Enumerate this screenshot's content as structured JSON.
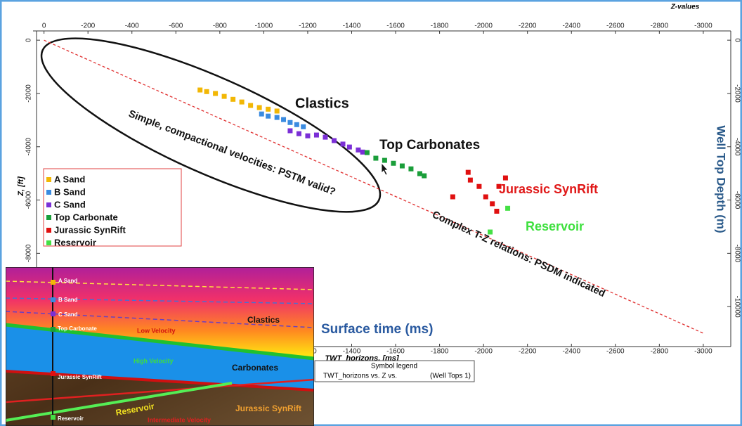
{
  "chart_data": {
    "type": "scatter",
    "x_label_top": "Z-values",
    "x_label": "TWT_horizons, [ms]",
    "y_label": "Z, [ft]",
    "y2_label": "Well Top Depth (m)",
    "xlim": [
      50,
      -3125
    ],
    "xticks": [
      0,
      -200,
      -400,
      -600,
      -800,
      -1000,
      -1200,
      -1400,
      -1600,
      -1800,
      -2000,
      -2200,
      -2400,
      -2600,
      -2800,
      -3000
    ],
    "ylim": [
      400,
      -11500
    ],
    "yticks": [
      0,
      -2000,
      -4000,
      -6000,
      -8000
    ],
    "y2lim": [
      400,
      -11500
    ],
    "y2ticks": [
      0,
      -2000,
      -4000,
      -6000,
      -8000,
      -10000
    ],
    "series": [
      {
        "name": "A Sand",
        "color": "#f2b705",
        "x": [
          -710,
          -740,
          -780,
          -820,
          -860,
          -900,
          -940,
          -980,
          -1020,
          -1060
        ],
        "y": [
          -1870,
          -1930,
          -2000,
          -2110,
          -2220,
          -2320,
          -2450,
          -2530,
          -2590,
          -2660
        ]
      },
      {
        "name": "B Sand",
        "color": "#3a8be0",
        "x": [
          -990,
          -1020,
          -1060,
          -1090,
          -1120,
          -1150,
          -1180
        ],
        "y": [
          -2770,
          -2850,
          -2900,
          -2980,
          -3090,
          -3170,
          -3250
        ]
      },
      {
        "name": "C Sand",
        "color": "#7b2fd6",
        "x": [
          -1120,
          -1160,
          -1200,
          -1240,
          -1280,
          -1320,
          -1360,
          -1390,
          -1430,
          -1450
        ],
        "y": [
          -3400,
          -3510,
          -3590,
          -3560,
          -3640,
          -3770,
          -3900,
          -4010,
          -4120,
          -4200
        ]
      },
      {
        "name": "Top Carbonate",
        "color": "#1a9e3a",
        "x": [
          -1470,
          -1510,
          -1550,
          -1590,
          -1630,
          -1670,
          -1710,
          -1730
        ],
        "y": [
          -4220,
          -4430,
          -4510,
          -4620,
          -4720,
          -4830,
          -5010,
          -5090
        ]
      },
      {
        "name": "Jurassic SynRift",
        "color": "#e01010",
        "x": [
          -1860,
          -1930,
          -1940,
          -1980,
          -2010,
          -2040,
          -2070,
          -2100,
          -2060
        ],
        "y": [
          -5880,
          -4960,
          -5250,
          -5490,
          -5880,
          -6140,
          -5490,
          -5170,
          -6420
        ]
      },
      {
        "name": "Reservoir",
        "color": "#44e044",
        "x": [
          -2110,
          -2030
        ],
        "y": [
          -6310,
          -7200
        ]
      }
    ],
    "trend": {
      "color": "#e03030",
      "x": [
        0,
        -3000
      ],
      "y": [
        0,
        -11000
      ]
    },
    "annotations": [
      {
        "text": "Clastics",
        "color": "#111111"
      },
      {
        "text": "Top Carbonates",
        "color": "#111111"
      },
      {
        "text": "Jurassic SynRift",
        "color": "#e01818"
      },
      {
        "text": "Reservoir",
        "color": "#3ee03e"
      },
      {
        "text": "Simple, compactional velocities: PSTM valid?",
        "color": "#111111"
      },
      {
        "text": "Complex T-Z relations: PSDM indicated",
        "color": "#111111"
      },
      {
        "text": "Surface time (ms)",
        "color": "#2a5aa0"
      }
    ],
    "symbol_legend": {
      "title": "Symbol legend",
      "text": "TWT_horizons vs. Z vs.",
      "suffix": "(Well Tops 1)"
    }
  },
  "inset": {
    "labels": [
      {
        "text": "A Sand",
        "color": "#ffffff"
      },
      {
        "text": "B Sand",
        "color": "#ffffff"
      },
      {
        "text": "C Sand",
        "color": "#ffffff"
      },
      {
        "text": "Top Carbonate",
        "color": "#ffffff"
      },
      {
        "text": "Low Velocity",
        "color": "#d01010"
      },
      {
        "text": "Clastics",
        "color": "#111111"
      },
      {
        "text": "High Velocity",
        "color": "#3ee03e"
      },
      {
        "text": "Carbonates",
        "color": "#111111"
      },
      {
        "text": "Jurassic SynRift",
        "color": "#ffffff"
      },
      {
        "text": "Jurassic SynRift",
        "color": "#f0a030"
      },
      {
        "text": "Reservoir",
        "color": "#f0e020"
      },
      {
        "text": "Reservoir",
        "color": "#ffffff"
      },
      {
        "text": "Intermediate Velocity",
        "color": "#e02020"
      }
    ]
  }
}
